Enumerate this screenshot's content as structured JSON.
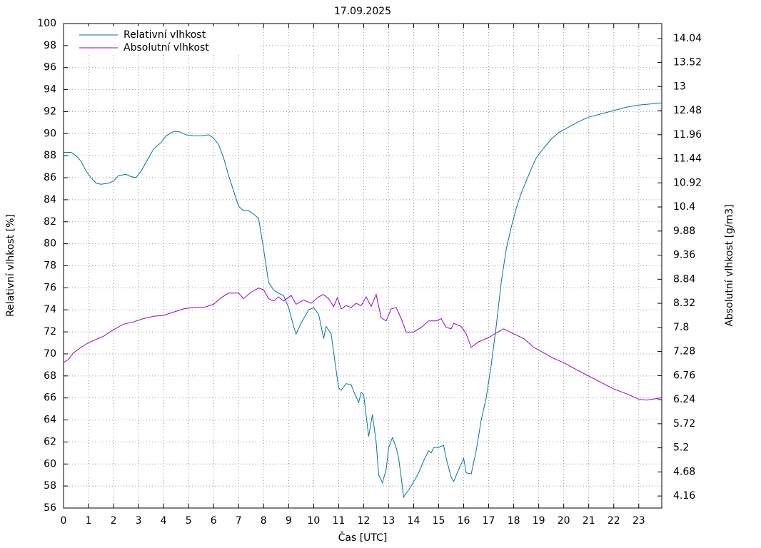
{
  "chart_data": {
    "type": "line",
    "title": "17.09.2025",
    "xlabel": "Čas [UTC]",
    "ylabel": "Relativní vlhkost [%]",
    "y2label": "Absolutní vlhkost [g/m3]",
    "xlim": [
      0,
      23.92
    ],
    "xticks": [
      0,
      1,
      2,
      3,
      4,
      5,
      6,
      7,
      8,
      9,
      10,
      11,
      12,
      13,
      14,
      15,
      16,
      17,
      18,
      19,
      20,
      21,
      22,
      23
    ],
    "ylim": [
      56,
      100
    ],
    "yticks": [
      56,
      58,
      60,
      62,
      64,
      66,
      68,
      70,
      72,
      74,
      76,
      78,
      80,
      82,
      84,
      86,
      88,
      90,
      92,
      94,
      96,
      98,
      100
    ],
    "y2lim": [
      3.9,
      14.36
    ],
    "y2ticks": [
      4.16,
      4.68,
      5.2,
      5.72,
      6.24,
      6.76,
      7.28,
      7.8,
      8.32,
      8.84,
      9.36,
      9.88,
      10.4,
      10.92,
      11.44,
      11.96,
      12.48,
      13,
      13.52,
      14.04
    ],
    "grid": true,
    "legend": "upper-left",
    "series": [
      {
        "name": "Relativní vlhkost",
        "color": "#0072b2",
        "x": [
          0,
          0.3,
          0.5,
          0.7,
          0.9,
          1.1,
          1.3,
          1.5,
          1.8,
          2,
          2.2,
          2.5,
          2.7,
          2.9,
          3.1,
          3.4,
          3.6,
          3.9,
          4.1,
          4.4,
          4.6,
          4.9,
          5.2,
          5.5,
          5.8,
          6,
          6.2,
          6.4,
          6.6,
          6.8,
          7,
          7.2,
          7.4,
          7.6,
          7.8,
          8,
          8.2,
          8.4,
          8.6,
          8.8,
          9,
          9.2,
          9.3,
          9.5,
          9.8,
          10,
          10.2,
          10.4,
          10.5,
          10.7,
          10.9,
          11,
          11.1,
          11.3,
          11.5,
          11.6,
          11.8,
          11.9,
          12,
          12.2,
          12.35,
          12.5,
          12.6,
          12.75,
          12.9,
          13,
          13.15,
          13.3,
          13.4,
          13.5,
          13.6,
          13.75,
          13.9,
          14.2,
          14.4,
          14.6,
          14.7,
          14.8,
          15,
          15.2,
          15.3,
          15.5,
          15.6,
          15.8,
          16,
          16.1,
          16.3,
          16.5,
          16.7,
          16.9,
          17.1,
          17.3,
          17.5,
          17.7,
          17.9,
          18.1,
          18.3,
          18.5,
          18.7,
          18.9,
          19.2,
          19.5,
          19.8,
          20.2,
          20.6,
          21,
          21.5,
          22,
          22.5,
          23,
          23.5,
          23.9
        ],
        "values": [
          88.3,
          88.3,
          88,
          87.5,
          86.6,
          86,
          85.5,
          85.4,
          85.5,
          85.7,
          86.2,
          86.3,
          86.1,
          86,
          86.6,
          87.8,
          88.6,
          89.2,
          89.8,
          90.2,
          90.2,
          89.9,
          89.8,
          89.8,
          89.9,
          89.6,
          89,
          87.8,
          86.2,
          84.8,
          83.4,
          83,
          83,
          82.7,
          82.3,
          79.5,
          76.5,
          75.8,
          75.5,
          75.3,
          74.2,
          72.5,
          71.8,
          72.8,
          74,
          74.2,
          73.6,
          71.4,
          72.5,
          71.8,
          68.5,
          66.9,
          66.7,
          67.3,
          67.2,
          66.6,
          65.6,
          66.5,
          66.3,
          62.5,
          64.5,
          62,
          59,
          58.3,
          59.5,
          61.5,
          62.4,
          61.5,
          60.5,
          58.8,
          57,
          57.5,
          58,
          59.2,
          60.3,
          61.2,
          61,
          61.5,
          61.5,
          61.7,
          60.5,
          58.8,
          58.4,
          59.5,
          60.5,
          59.2,
          59.1,
          61.2,
          64,
          66,
          69,
          72.5,
          76.5,
          79.5,
          81.5,
          83.2,
          84.6,
          85.7,
          86.8,
          87.8,
          88.7,
          89.5,
          90.1,
          90.6,
          91.1,
          91.5,
          91.8,
          92.1,
          92.4,
          92.6,
          92.7,
          92.8
        ]
      },
      {
        "name": "Absolutní vlhkost",
        "color": "#9400d3",
        "axis": "y2",
        "x": [
          0,
          0.2,
          0.4,
          0.7,
          1,
          1.3,
          1.6,
          2,
          2.4,
          2.8,
          3.2,
          3.6,
          4,
          4.4,
          4.8,
          5.2,
          5.6,
          6,
          6.3,
          6.6,
          7,
          7.2,
          7.5,
          7.8,
          8,
          8.2,
          8.4,
          8.6,
          8.8,
          9.1,
          9.3,
          9.6,
          9.9,
          10.2,
          10.4,
          10.6,
          10.8,
          10.95,
          11.1,
          11.3,
          11.5,
          11.7,
          11.9,
          12.1,
          12.3,
          12.5,
          12.7,
          12.9,
          13.1,
          13.3,
          13.5,
          13.7,
          14,
          14.3,
          14.6,
          14.9,
          15.1,
          15.3,
          15.5,
          15.6,
          15.9,
          16.1,
          16.3,
          16.6,
          17,
          17.3,
          17.6,
          18,
          18.4,
          18.8,
          19.2,
          19.6,
          20,
          20.5,
          21,
          21.5,
          22,
          22.5,
          23,
          23.3,
          23.9
        ],
        "values": [
          7.04,
          7.11,
          7.25,
          7.37,
          7.47,
          7.54,
          7.61,
          7.75,
          7.87,
          7.92,
          7.99,
          8.04,
          8.06,
          8.13,
          8.2,
          8.23,
          8.23,
          8.3,
          8.44,
          8.54,
          8.54,
          8.42,
          8.56,
          8.65,
          8.61,
          8.42,
          8.37,
          8.46,
          8.37,
          8.49,
          8.3,
          8.39,
          8.32,
          8.46,
          8.51,
          8.42,
          8.25,
          8.44,
          8.2,
          8.27,
          8.23,
          8.32,
          8.27,
          8.46,
          8.25,
          8.51,
          8.01,
          7.94,
          8.2,
          8.23,
          7.99,
          7.7,
          7.7,
          7.8,
          7.94,
          7.94,
          7.99,
          7.8,
          7.77,
          7.89,
          7.82,
          7.66,
          7.37,
          7.49,
          7.58,
          7.68,
          7.77,
          7.66,
          7.56,
          7.37,
          7.25,
          7.13,
          7.04,
          6.89,
          6.75,
          6.61,
          6.47,
          6.37,
          6.25,
          6.23,
          6.28
        ]
      }
    ]
  }
}
